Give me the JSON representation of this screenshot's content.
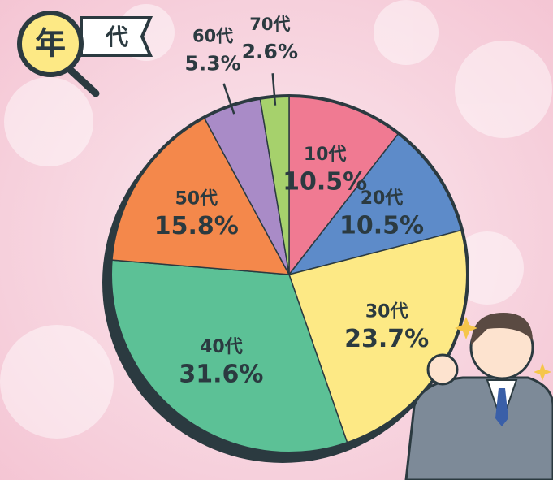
{
  "chart_data": {
    "type": "pie",
    "badge": "年",
    "title": "代",
    "categories": [
      "10代",
      "20代",
      "30代",
      "40代",
      "50代",
      "60代",
      "70代"
    ],
    "values": [
      10.5,
      10.5,
      23.7,
      31.6,
      15.8,
      5.3,
      2.6
    ],
    "value_labels": [
      "10.5%",
      "10.5%",
      "23.7%",
      "31.6%",
      "15.8%",
      "5.3%",
      "2.6%"
    ],
    "colors": [
      "#f07a92",
      "#5d8bc9",
      "#fde985",
      "#5cc196",
      "#f4884b",
      "#a98bc7",
      "#a6d16c"
    ]
  }
}
